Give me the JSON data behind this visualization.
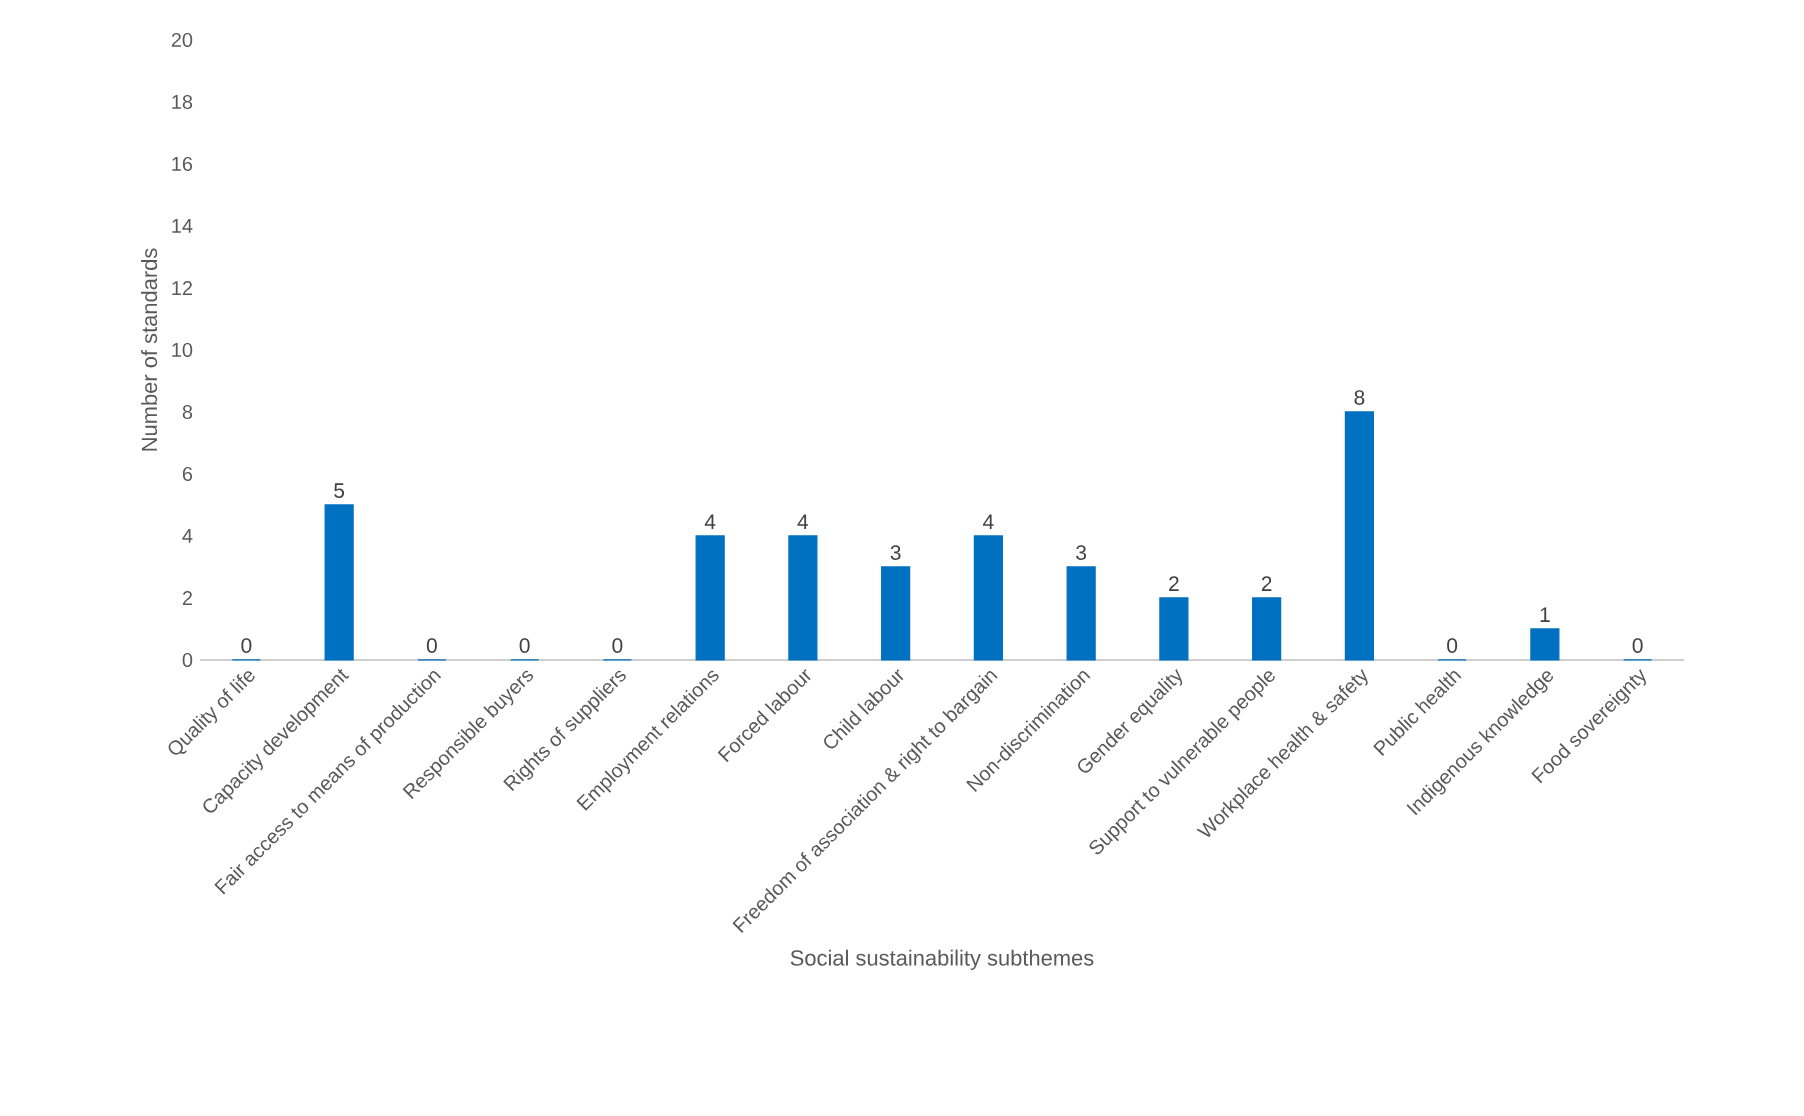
{
  "chart_data": {
    "type": "bar",
    "xlabel": "Social sustainability subthemes",
    "ylabel": "Number of standards",
    "categories": [
      "Quality of life",
      "Capacity development",
      "Fair access to means of production",
      "Responsible buyers",
      "Rights of suppliers",
      "Employment relations",
      "Forced labour",
      "Child labour",
      "Freedom of association & right to bargain",
      "Non-discrimination",
      "Gender equality",
      "Support to vulnerable people",
      "Workplace health & safety",
      "Public health",
      "Indigenous knowledge",
      "Food sovereignty"
    ],
    "values": [
      0,
      5,
      0,
      0,
      0,
      4,
      4,
      3,
      4,
      3,
      2,
      2,
      8,
      0,
      1,
      0
    ],
    "color": "#0070c0",
    "ylim": [
      0,
      20
    ],
    "yticks": [
      0,
      2,
      4,
      6,
      8,
      10,
      12,
      14,
      16,
      18,
      20
    ],
    "data_labels": true
  }
}
